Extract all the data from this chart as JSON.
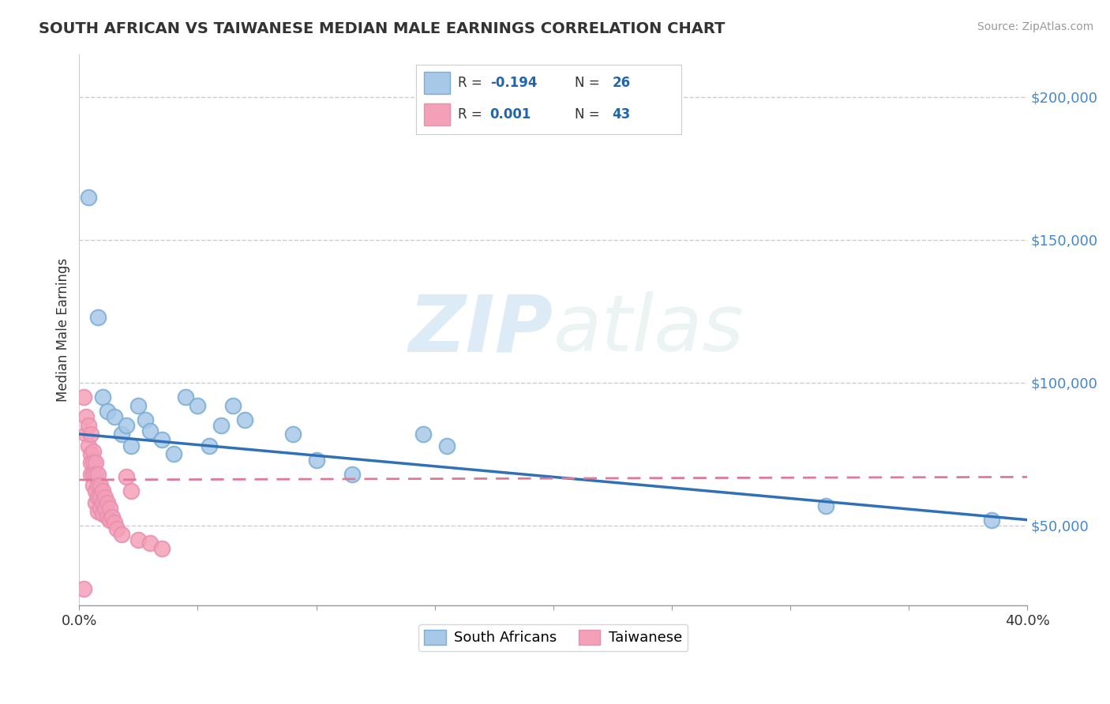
{
  "title": "SOUTH AFRICAN VS TAIWANESE MEDIAN MALE EARNINGS CORRELATION CHART",
  "source": "Source: ZipAtlas.com",
  "ylabel": "Median Male Earnings",
  "xlim": [
    0.0,
    0.4
  ],
  "ylim": [
    22000,
    215000
  ],
  "yticks": [
    50000,
    100000,
    150000,
    200000
  ],
  "ytick_labels": [
    "$50,000",
    "$100,000",
    "$150,000",
    "$200,000"
  ],
  "xticks": [
    0.0,
    0.05,
    0.1,
    0.15,
    0.2,
    0.25,
    0.3,
    0.35,
    0.4
  ],
  "blue_R": "-0.194",
  "blue_N": "26",
  "pink_R": "0.001",
  "pink_N": "43",
  "blue_color": "#a8c8e8",
  "pink_color": "#f4a0b8",
  "blue_edge_color": "#7aadd4",
  "pink_edge_color": "#e890b0",
  "blue_line_color": "#3070b8",
  "pink_line_color": "#e07898",
  "blue_scatter": [
    [
      0.004,
      165000
    ],
    [
      0.008,
      123000
    ],
    [
      0.01,
      95000
    ],
    [
      0.012,
      90000
    ],
    [
      0.015,
      88000
    ],
    [
      0.018,
      82000
    ],
    [
      0.02,
      85000
    ],
    [
      0.022,
      78000
    ],
    [
      0.025,
      92000
    ],
    [
      0.028,
      87000
    ],
    [
      0.03,
      83000
    ],
    [
      0.035,
      80000
    ],
    [
      0.04,
      75000
    ],
    [
      0.045,
      95000
    ],
    [
      0.05,
      92000
    ],
    [
      0.055,
      78000
    ],
    [
      0.06,
      85000
    ],
    [
      0.065,
      92000
    ],
    [
      0.07,
      87000
    ],
    [
      0.09,
      82000
    ],
    [
      0.1,
      73000
    ],
    [
      0.115,
      68000
    ],
    [
      0.145,
      82000
    ],
    [
      0.155,
      78000
    ],
    [
      0.315,
      57000
    ],
    [
      0.385,
      52000
    ]
  ],
  "pink_scatter": [
    [
      0.002,
      95000
    ],
    [
      0.003,
      88000
    ],
    [
      0.003,
      82000
    ],
    [
      0.004,
      85000
    ],
    [
      0.004,
      78000
    ],
    [
      0.005,
      82000
    ],
    [
      0.005,
      75000
    ],
    [
      0.005,
      72000
    ],
    [
      0.005,
      68000
    ],
    [
      0.006,
      76000
    ],
    [
      0.006,
      72000
    ],
    [
      0.006,
      68000
    ],
    [
      0.006,
      64000
    ],
    [
      0.007,
      72000
    ],
    [
      0.007,
      68000
    ],
    [
      0.007,
      62000
    ],
    [
      0.007,
      58000
    ],
    [
      0.008,
      68000
    ],
    [
      0.008,
      64000
    ],
    [
      0.008,
      60000
    ],
    [
      0.008,
      55000
    ],
    [
      0.009,
      64000
    ],
    [
      0.009,
      60000
    ],
    [
      0.009,
      56000
    ],
    [
      0.01,
      62000
    ],
    [
      0.01,
      58000
    ],
    [
      0.01,
      54000
    ],
    [
      0.011,
      60000
    ],
    [
      0.011,
      56000
    ],
    [
      0.012,
      58000
    ],
    [
      0.012,
      53000
    ],
    [
      0.013,
      56000
    ],
    [
      0.013,
      52000
    ],
    [
      0.014,
      53000
    ],
    [
      0.015,
      51000
    ],
    [
      0.016,
      49000
    ],
    [
      0.018,
      47000
    ],
    [
      0.02,
      67000
    ],
    [
      0.022,
      62000
    ],
    [
      0.025,
      45000
    ],
    [
      0.03,
      44000
    ],
    [
      0.035,
      42000
    ],
    [
      0.002,
      28000
    ]
  ],
  "blue_trendline": [
    [
      0.0,
      82000
    ],
    [
      0.4,
      52000
    ]
  ],
  "pink_trendline": [
    [
      0.0,
      66000
    ],
    [
      0.4,
      67000
    ]
  ],
  "background_color": "#ffffff",
  "grid_color": "#cccccc",
  "watermark_zip": "ZIP",
  "watermark_atlas": "atlas",
  "legend_text_color": "#2166ac",
  "legend_label_color": "#333333"
}
